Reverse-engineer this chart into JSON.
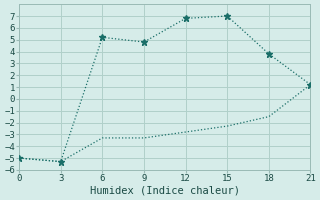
{
  "title": "",
  "xlabel": "Humidex (Indice chaleur)",
  "background_color": "#d6ece9",
  "grid_color": "#b0d0ca",
  "line_color": "#1a6e68",
  "line1_x": [
    0,
    3,
    6,
    9,
    12,
    15,
    18,
    21
  ],
  "line1_y": [
    -5.0,
    -5.3,
    5.2,
    4.8,
    6.8,
    7.0,
    3.8,
    1.2
  ],
  "line2_x": [
    0,
    3,
    6,
    9,
    12,
    15,
    18,
    21
  ],
  "line2_y": [
    -5.0,
    -5.3,
    -3.3,
    -3.3,
    -2.8,
    -2.3,
    -1.5,
    1.2
  ],
  "xlim": [
    0,
    21
  ],
  "ylim": [
    -6,
    8
  ],
  "xticks": [
    0,
    3,
    6,
    9,
    12,
    15,
    18,
    21
  ],
  "yticks": [
    -6,
    -5,
    -4,
    -3,
    -2,
    -1,
    0,
    1,
    2,
    3,
    4,
    5,
    6,
    7
  ],
  "tick_fontsize": 6.5,
  "label_fontsize": 7.5
}
